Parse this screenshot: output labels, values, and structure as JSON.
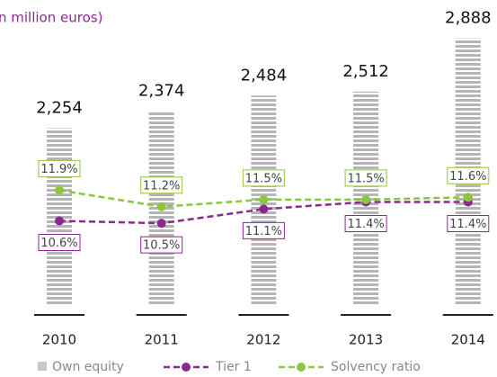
{
  "chart_data": {
    "type": "bar",
    "subtitle": "n million euros)",
    "categories": [
      "2010",
      "2011",
      "2012",
      "2013",
      "2014"
    ],
    "ylim": [
      1000,
      3000
    ],
    "y2lim": [
      7,
      19
    ],
    "series": [
      {
        "name": "Own equity",
        "type": "bar",
        "color": "#b5b5b5",
        "values": [
          2254,
          2374,
          2484,
          2512,
          2888
        ],
        "value_labels": [
          "2,254",
          "2,374",
          "2,484",
          "2,512",
          "2,888"
        ]
      },
      {
        "name": "Tier 1",
        "type": "line",
        "axis": "y2",
        "color": "#8b2a8e",
        "values": [
          10.6,
          10.5,
          11.1,
          11.4,
          11.4
        ],
        "value_labels": [
          "10.6%",
          "10.5%",
          "11.1%",
          "11.4%",
          "11.4%"
        ]
      },
      {
        "name": "Solvency ratio",
        "type": "line",
        "axis": "y2",
        "color": "#8cc63f",
        "values": [
          11.9,
          11.2,
          11.5,
          11.5,
          11.6
        ],
        "value_labels": [
          "11.9%",
          "11.2%",
          "11.5%",
          "11.5%",
          "11.6%"
        ]
      }
    ]
  }
}
